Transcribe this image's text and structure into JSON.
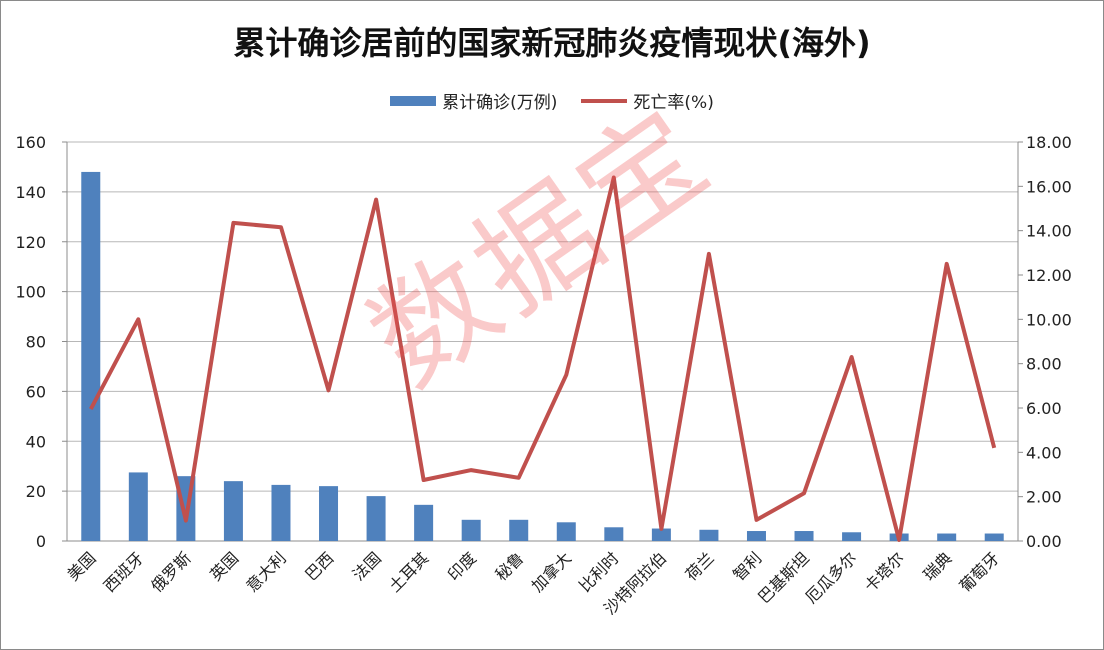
{
  "chart_data": {
    "type": "bar+line",
    "title": "累计确诊居前的国家新冠肺炎疫情现状(海外)",
    "categories": [
      "美国",
      "西班牙",
      "俄罗斯",
      "英国",
      "意大利",
      "巴西",
      "法国",
      "土耳其",
      "印度",
      "秘鲁",
      "加拿大",
      "比利时",
      "沙特阿拉伯",
      "荷兰",
      "智利",
      "巴基斯坦",
      "厄瓜多尔",
      "卡塔尔",
      "瑞典",
      "葡萄牙"
    ],
    "series": [
      {
        "name": "累计确诊(万例)",
        "type": "bar",
        "axis": "left",
        "color": "#4f81bd",
        "values": [
          148,
          27.5,
          26,
          24,
          22.5,
          22,
          18,
          14.5,
          8.5,
          8.5,
          7.5,
          5.5,
          5,
          4.5,
          4,
          4,
          3.5,
          3,
          3,
          3
        ]
      },
      {
        "name": "死亡率(%)",
        "type": "line",
        "axis": "right",
        "color": "#c0504d",
        "values": [
          5.95,
          10.0,
          0.92,
          14.35,
          14.15,
          6.8,
          15.4,
          2.75,
          3.2,
          2.85,
          7.5,
          16.4,
          0.55,
          12.95,
          0.95,
          2.15,
          8.3,
          0.05,
          12.5,
          4.2
        ]
      }
    ],
    "y_left": {
      "min": 0,
      "max": 160,
      "ticks": [
        "0",
        "20",
        "40",
        "60",
        "80",
        "100",
        "120",
        "140",
        "160"
      ]
    },
    "y_right": {
      "min": 0,
      "max": 18,
      "ticks": [
        "0.00",
        "2.00",
        "4.00",
        "6.00",
        "8.00",
        "10.00",
        "12.00",
        "14.00",
        "16.00",
        "18.00"
      ]
    },
    "grid": true,
    "legend_position": "top-center"
  },
  "watermark": "数据宝"
}
